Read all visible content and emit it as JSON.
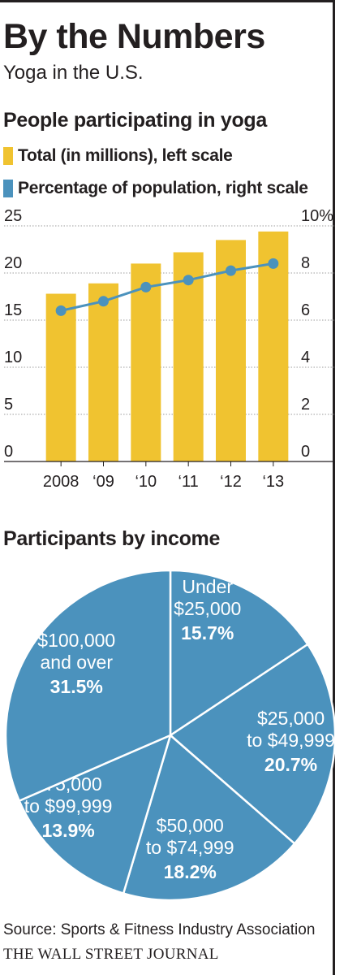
{
  "header": {
    "title": "By the Numbers",
    "subtitle": "Yoga in the U.S."
  },
  "colors": {
    "bar": "#f0c330",
    "line": "#4b92bd",
    "pie": "#4b92bd",
    "pie_border": "#ffffff",
    "text": "#231f20",
    "grid": "#9d9d9d"
  },
  "legend": {
    "total_label": "Total (in millions), left scale",
    "percent_label": "Percentage of population, right scale"
  },
  "chart_data": [
    {
      "type": "bar",
      "title": "People participating in yoga",
      "categories": [
        "2008",
        "‘09",
        "‘10",
        "‘11",
        "‘12",
        "‘13"
      ],
      "series": [
        {
          "name": "Total (in millions), left scale",
          "type": "bar",
          "axis": "left",
          "values": [
            17.8,
            18.9,
            21.0,
            22.2,
            23.5,
            24.4
          ]
        },
        {
          "name": "Percentage of population, right scale",
          "type": "line",
          "axis": "right",
          "values": [
            6.4,
            6.8,
            7.4,
            7.7,
            8.1,
            8.4
          ]
        }
      ],
      "y_left": {
        "ticks": [
          "25",
          "20",
          "15",
          "10",
          "5",
          "0"
        ],
        "ylim": [
          0,
          25
        ]
      },
      "y_right": {
        "ticks": [
          "10%",
          "8",
          "6",
          "4",
          "2",
          "0"
        ],
        "ylim": [
          0,
          10
        ]
      },
      "grid": true,
      "legend_position": "top"
    },
    {
      "type": "pie",
      "title": "Participants by income",
      "slices": [
        {
          "label_lines": [
            "Under",
            "$25,000"
          ],
          "value_label": "15.7%",
          "value": 15.7
        },
        {
          "label_lines": [
            "$25,000",
            "to $49,999"
          ],
          "value_label": "20.7%",
          "value": 20.7
        },
        {
          "label_lines": [
            "$50,000",
            "to $74,999"
          ],
          "value_label": "18.2%",
          "value": 18.2
        },
        {
          "label_lines": [
            "$75,000",
            "to $99,999"
          ],
          "value_label": "13.9%",
          "value": 13.9
        },
        {
          "label_lines": [
            "$100,000",
            "and over"
          ],
          "value_label": "31.5%",
          "value": 31.5
        }
      ]
    }
  ],
  "footer": {
    "source": "Source: Sports & Fitness Industry Association",
    "publication": "THE WALL STREET JOURNAL"
  }
}
